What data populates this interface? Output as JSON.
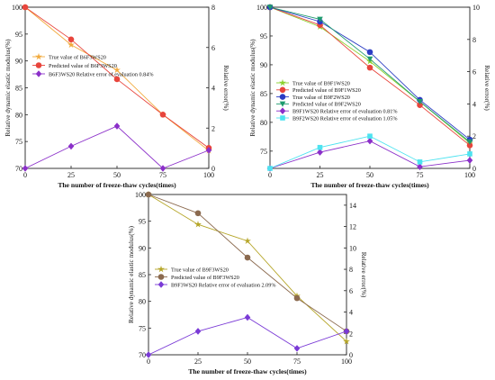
{
  "chart_data": [
    {
      "type": "line",
      "title": "",
      "xlabel": "The number of freeze-thaw cycles(times)",
      "ylabel": "Relative dynamic elastic modulus(%)",
      "y2label": "Relative error(%)",
      "x": [
        0,
        25,
        50,
        75,
        100
      ],
      "xticks": [
        "0",
        "25",
        "50",
        "75",
        "100"
      ],
      "ylim": [
        70,
        100
      ],
      "yticks": [
        "70",
        "75",
        "80",
        "85",
        "90",
        "95",
        "100"
      ],
      "y2lim": [
        0,
        8
      ],
      "y2ticks": [
        "0",
        "2",
        "4",
        "6",
        "8"
      ],
      "grid": false,
      "legend_position": "top-left",
      "series": [
        {
          "name": "True value of B6F3WS20",
          "axis": "left",
          "color": "#f2a93b",
          "marker": "star",
          "values": [
            100,
            93.0,
            88.3,
            80.0,
            73.3
          ]
        },
        {
          "name": "Predicted value of B6F3WS20",
          "axis": "left",
          "color": "#e8453c",
          "marker": "circle",
          "values": [
            100,
            94.0,
            86.6,
            80.0,
            73.8
          ]
        },
        {
          "name": "B6F3WS20 Relative error of evaluation 0.84%",
          "axis": "right",
          "color": "#8b2fc9",
          "marker": "diamond",
          "values": [
            0,
            1.1,
            2.1,
            0,
            0.9
          ]
        }
      ]
    },
    {
      "type": "line",
      "title": "",
      "xlabel": "The number of freeze-thaw cycles(times)",
      "ylabel": "Relative dynamic elastic modulus(%)",
      "y2label": "Relative error(%)",
      "x": [
        0,
        25,
        50,
        75,
        100
      ],
      "xticks": [
        "0",
        "25",
        "50",
        "75",
        "100"
      ],
      "ylim": [
        72,
        100
      ],
      "yticks": [
        "75",
        "80",
        "85",
        "90",
        "95",
        "100"
      ],
      "y2lim": [
        0,
        10
      ],
      "y2ticks": [
        "0",
        "2",
        "4",
        "6",
        "8",
        "10"
      ],
      "grid": false,
      "legend_position": "bottom-left",
      "series": [
        {
          "name": "True value of B9F1WS20",
          "axis": "left",
          "color": "#8bd12c",
          "marker": "star",
          "values": [
            100,
            96.6,
            90.6,
            83.6,
            76.4
          ]
        },
        {
          "name": "Predicted value of B9F1WS20",
          "axis": "left",
          "color": "#e8453c",
          "marker": "circle",
          "values": [
            100,
            96.9,
            89.5,
            83.0,
            76.0
          ]
        },
        {
          "name": "True value of B9F2WS20",
          "axis": "left",
          "color": "#2b3cc4",
          "marker": "circle",
          "values": [
            100,
            97.5,
            92.2,
            83.9,
            77.0
          ]
        },
        {
          "name": "Predicted value of B9F2WS20",
          "axis": "left",
          "color": "#1e9b6e",
          "marker": "triangle-down",
          "values": [
            100,
            97.9,
            91.0,
            83.6,
            76.6
          ]
        },
        {
          "name": "B9F1WS20 Relative error of evaluation 0.81%",
          "axis": "right",
          "color": "#8b2fc9",
          "marker": "diamond",
          "values": [
            0,
            1.0,
            1.7,
            0.1,
            0.5
          ]
        },
        {
          "name": "B9F2WS20 Relative error of evaluation 1.05%",
          "axis": "right",
          "color": "#4de3f0",
          "marker": "square",
          "values": [
            0,
            1.3,
            2.0,
            0.4,
            0.9
          ]
        }
      ]
    },
    {
      "type": "line",
      "title": "",
      "xlabel": "The number of freeze-thaw cycles(times)",
      "ylabel": "Relative dynamic elastic modulus(%)",
      "y2label": "Relative error(%)",
      "x": [
        0,
        25,
        50,
        75,
        100
      ],
      "xticks": [
        "0",
        "25",
        "50",
        "75",
        "100"
      ],
      "ylim": [
        70,
        100
      ],
      "yticks": [
        "70",
        "75",
        "80",
        "85",
        "90",
        "95",
        "100"
      ],
      "y2lim": [
        0,
        15
      ],
      "y2ticks": [
        "0",
        "2",
        "4",
        "6",
        "8",
        "10",
        "12",
        "14"
      ],
      "grid": false,
      "legend_position": "center-left",
      "series": [
        {
          "name": "True value of B9F3WS20",
          "axis": "left",
          "color": "#b5a527",
          "marker": "star",
          "values": [
            100,
            94.4,
            91.3,
            81.0,
            72.5
          ]
        },
        {
          "name": "Predicted value of B9F3WS20",
          "axis": "left",
          "color": "#8b6a4f",
          "marker": "circle",
          "values": [
            100,
            96.5,
            88.2,
            80.6,
            74.4
          ]
        },
        {
          "name": "B9F3WS20 Relative error of evaluation 2.09%",
          "axis": "right",
          "color": "#7a3ad6",
          "marker": "diamond",
          "values": [
            0,
            2.2,
            3.5,
            0.6,
            2.2
          ]
        }
      ]
    }
  ]
}
